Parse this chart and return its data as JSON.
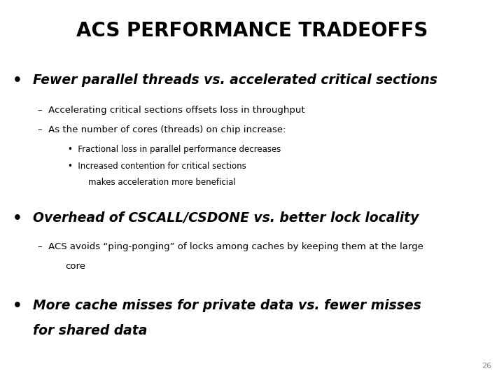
{
  "title": "ACS PERFORMANCE TRADEOFFS",
  "background_color": "#ffffff",
  "text_color": "#000000",
  "page_number": "26",
  "bullet1_text": "Fewer parallel threads vs. accelerated critical sections",
  "bullet1_sub1": "Accelerating critical sections offsets loss in throughput",
  "bullet1_sub2": "As the number of cores (threads) on chip increase:",
  "bullet1_sub2_b1": "Fractional loss in parallel performance decreases",
  "bullet1_sub2_b2a": "Increased contention for critical sections",
  "bullet1_sub2_b2b": "makes acceleration more beneficial",
  "bullet2_text": "Overhead of CSCALL/CSDONE vs. better lock locality",
  "bullet2_sub1a": "ACS avoids “ping-ponging” of locks among caches by keeping them at the large",
  "bullet2_sub1b": "core",
  "bullet3_text1": "More cache misses for private data vs. fewer misses",
  "bullet3_text2": "for shared data",
  "title_fontsize": 20,
  "bullet_fontsize": 13.5,
  "sub_fontsize": 9.5,
  "subsub_fontsize": 8.5,
  "page_fontsize": 8
}
